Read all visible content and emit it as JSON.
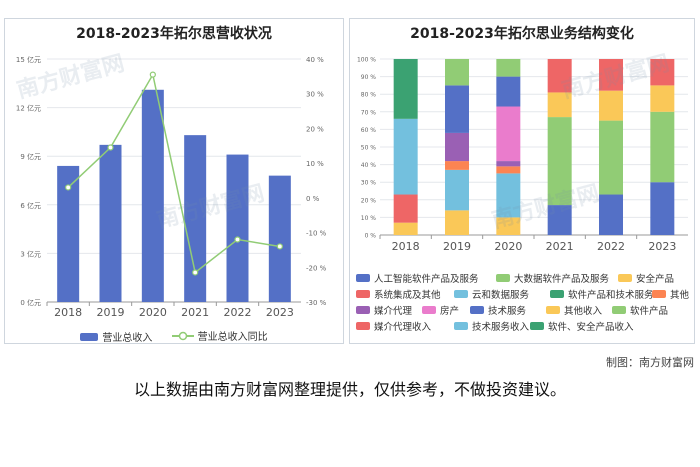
{
  "left_chart": {
    "title": "2018-2023年拓尔思营收状况",
    "chart_data": {
      "type": "bar+line",
      "categories": [
        "2018",
        "2019",
        "2020",
        "2021",
        "2022",
        "2023"
      ],
      "series": [
        {
          "name": "营业总收入",
          "type": "bar",
          "axis": "left",
          "values": [
            8.4,
            9.7,
            13.1,
            10.3,
            9.1,
            7.8
          ]
        },
        {
          "name": "营业总收入同比",
          "type": "line",
          "axis": "right",
          "values": [
            3.0,
            14.5,
            35.5,
            -21.5,
            -12.0,
            -14.0
          ]
        }
      ],
      "y_left": {
        "ticks": [
          "0 亿元",
          "3 亿元",
          "6 亿元",
          "9 亿元",
          "12 亿元",
          "15 亿元"
        ],
        "range": [
          0,
          15
        ]
      },
      "y_right": {
        "ticks": [
          "-30 %",
          "-20 %",
          "-10 %",
          "0 %",
          "10 %",
          "20 %",
          "30 %",
          "40 %"
        ],
        "range": [
          -30,
          40
        ]
      },
      "colors": {
        "bar": "#5470c6",
        "line": "#91cc75"
      },
      "legend": [
        "营业总收入",
        "营业总收入同比"
      ]
    }
  },
  "right_chart": {
    "title": "2018-2023年拓尔思业务结构变化",
    "chart_data": {
      "type": "stacked-bar-percent",
      "categories": [
        "2018",
        "2019",
        "2020",
        "2021",
        "2022",
        "2023"
      ],
      "y_ticks": [
        "0 %",
        "10 %",
        "20 %",
        "30 %",
        "40 %",
        "50 %",
        "60 %",
        "70 %",
        "80 %",
        "90 %",
        "100 %"
      ],
      "series": [
        {
          "name": "人工智能软件产品及服务",
          "color": "#5470c6",
          "values": [
            0,
            0,
            0,
            0,
            0,
            0
          ]
        },
        {
          "name": "大数据软件产品及服务",
          "color": "#91cc75",
          "values": [
            0,
            0,
            0,
            0,
            0,
            0
          ]
        },
        {
          "name": "安全产品",
          "color": "#fac858",
          "values": [
            0,
            0,
            0,
            0,
            0,
            0
          ]
        },
        {
          "name": "系统集成及其他",
          "color": "#ee6666",
          "values": [
            0,
            0,
            0,
            0,
            0,
            0
          ]
        },
        {
          "name": "云和数据服务",
          "color": "#73c0de",
          "values": [
            0,
            0,
            0,
            0,
            0,
            0
          ]
        },
        {
          "name": "软件产品和技术服务",
          "color": "#3ba272",
          "values": [
            0,
            0,
            0,
            0,
            0,
            0
          ]
        },
        {
          "name": "其他",
          "color": "#fc8452",
          "values": [
            0,
            0,
            0,
            0,
            0,
            0
          ]
        },
        {
          "name": "媒介代理",
          "color": "#9a60b4",
          "values": [
            0,
            0,
            0,
            0,
            0,
            0
          ]
        },
        {
          "name": "房产",
          "color": "#ea7ccc",
          "values": [
            0,
            0,
            0,
            0,
            0,
            0
          ]
        },
        {
          "name": "技术服务",
          "color": "#5470c6",
          "values": [
            0,
            0,
            0,
            0,
            0,
            0
          ]
        },
        {
          "name": "其他收入",
          "color": "#fac858",
          "values": [
            0,
            0,
            0,
            0,
            0,
            0
          ]
        },
        {
          "name": "媒介代理收入",
          "color": "#ee6666",
          "values": [
            0,
            0,
            0,
            0,
            0,
            0
          ]
        },
        {
          "name": "技术服务收入",
          "color": "#73c0de",
          "values": [
            0,
            0,
            0,
            0,
            0,
            0
          ]
        },
        {
          "name": "软件、安全产品收入",
          "color": "#3ba272",
          "values": [
            0,
            0,
            0,
            0,
            0,
            0
          ]
        },
        {
          "name": "软件产品",
          "color": "#91cc75",
          "values": [
            0,
            0,
            0,
            0,
            0,
            0
          ]
        }
      ],
      "stacks": [
        [
          {
            "s": "其他收入",
            "v": 7
          },
          {
            "s": "媒介代理收入",
            "v": 16
          },
          {
            "s": "技术服务收入",
            "v": 43
          },
          {
            "s": "软件、安全产品收入",
            "v": 34
          }
        ],
        [
          {
            "s": "其他收入",
            "v": 14
          },
          {
            "s": "技术服务收入",
            "v": 23
          },
          {
            "s": "其他",
            "v": 5
          },
          {
            "s": "媒介代理",
            "v": 16
          },
          {
            "s": "技术服务",
            "v": 27
          },
          {
            "s": "软件产品",
            "v": 15
          }
        ],
        [
          {
            "s": "其他收入",
            "v": 10
          },
          {
            "s": "技术服务收入",
            "v": 25
          },
          {
            "s": "其他",
            "v": 4
          },
          {
            "s": "媒介代理",
            "v": 3
          },
          {
            "s": "房产",
            "v": 31
          },
          {
            "s": "技术服务",
            "v": 17
          },
          {
            "s": "软件产品",
            "v": 10
          }
        ],
        [
          {
            "s": "人工智能软件产品及服务",
            "v": 17
          },
          {
            "s": "大数据软件产品及服务",
            "v": 50
          },
          {
            "s": "安全产品",
            "v": 14
          },
          {
            "s": "系统集成及其他",
            "v": 19
          }
        ],
        [
          {
            "s": "人工智能软件产品及服务",
            "v": 23
          },
          {
            "s": "大数据软件产品及服务",
            "v": 42
          },
          {
            "s": "安全产品",
            "v": 17
          },
          {
            "s": "系统集成及其他",
            "v": 18
          }
        ],
        [
          {
            "s": "人工智能软件产品及服务",
            "v": 30
          },
          {
            "s": "大数据软件产品及服务",
            "v": 40
          },
          {
            "s": "安全产品",
            "v": 15
          },
          {
            "s": "系统集成及其他",
            "v": 15
          }
        ]
      ]
    }
  },
  "watermark": "南方财富网",
  "credit": "制图：南方财富网",
  "disclaimer": "以上数据由南方财富网整理提供，仅供参考，不做投资建议。"
}
